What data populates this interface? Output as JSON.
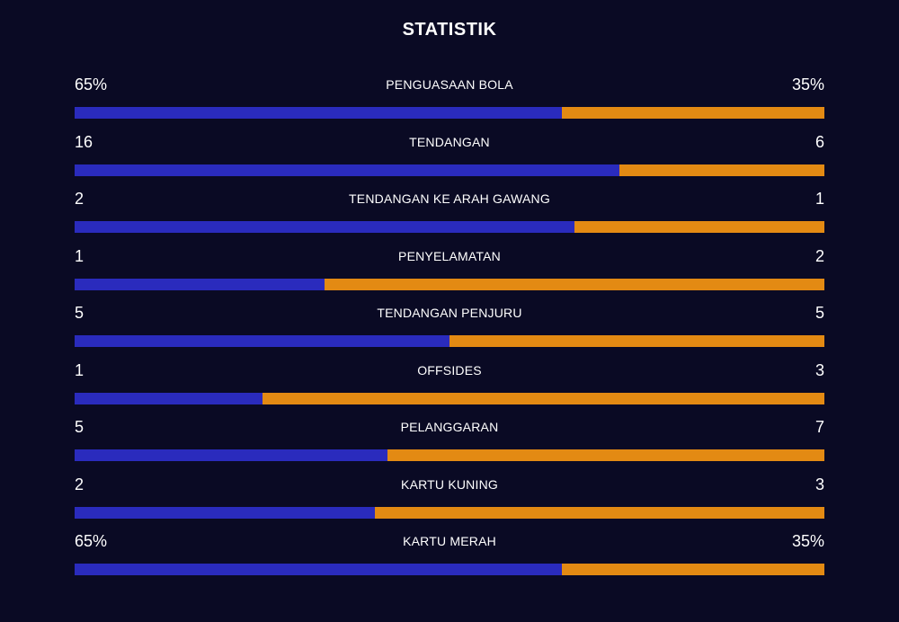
{
  "title": "STATISTIK",
  "colors": {
    "home": "#2a2bbd",
    "away": "#e38a13",
    "background": "#0a0a24"
  },
  "stats": [
    {
      "label": "PENGUASAAN BOLA",
      "home": "65%",
      "away": "35%",
      "home_share": 0.65
    },
    {
      "label": "TENDANGAN",
      "home": "16",
      "away": "6",
      "home_share": 0.727
    },
    {
      "label": "TENDANGAN KE ARAH GAWANG",
      "home": "2",
      "away": "1",
      "home_share": 0.667
    },
    {
      "label": "PENYELAMATAN",
      "home": "1",
      "away": "2",
      "home_share": 0.333
    },
    {
      "label": "TENDANGAN PENJURU",
      "home": "5",
      "away": "5",
      "home_share": 0.5
    },
    {
      "label": "OFFSIDES",
      "home": "1",
      "away": "3",
      "home_share": 0.25
    },
    {
      "label": "PELANGGARAN",
      "home": "5",
      "away": "7",
      "home_share": 0.417
    },
    {
      "label": "KARTU KUNING",
      "home": "2",
      "away": "3",
      "home_share": 0.4
    },
    {
      "label": "KARTU MERAH",
      "home": "65%",
      "away": "35%",
      "home_share": 0.65
    }
  ]
}
